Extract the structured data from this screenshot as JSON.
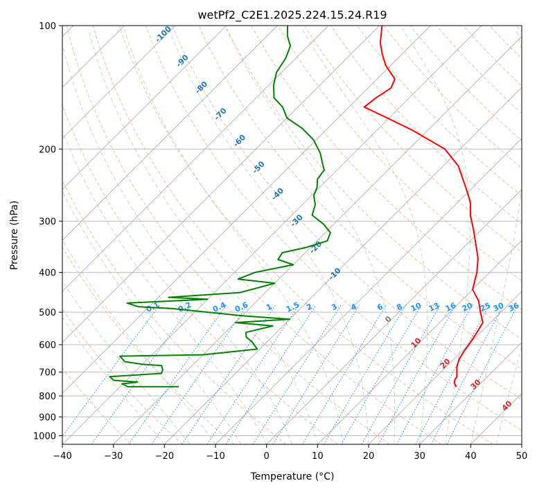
{
  "chart_data": {
    "type": "line",
    "subtype": "skew-T log-P diagram",
    "title": "wetPf2_C2E1.2025.224.15.24.R19",
    "xlabel": "Temperature (°C)",
    "ylabel": "Pressure (hPa)",
    "xlim": [
      -40,
      50
    ],
    "ylim": [
      1050,
      100
    ],
    "y_scale": "log",
    "x_ticks": [
      -40,
      -30,
      -20,
      -10,
      0,
      10,
      20,
      30,
      40,
      50
    ],
    "x_tick_labels": [
      "−40",
      "−30",
      "−20",
      "−10",
      "0",
      "10",
      "20",
      "30",
      "40",
      "50"
    ],
    "y_ticks": [
      100,
      200,
      300,
      400,
      500,
      600,
      700,
      800,
      900,
      1000
    ],
    "y_tick_labels": [
      "100",
      "200",
      "300",
      "400",
      "500",
      "600",
      "700",
      "800",
      "900",
      "1000"
    ],
    "grid": true,
    "series": [
      {
        "role": "temperature",
        "color": "#ff0000",
        "points": [
          [
            25.9,
            760
          ],
          [
            24.8,
            745
          ],
          [
            24.2,
            730
          ],
          [
            24.1,
            720
          ],
          [
            23.4,
            705
          ],
          [
            22.1,
            680
          ],
          [
            21.0,
            650
          ],
          [
            20.4,
            620
          ],
          [
            20.1,
            600
          ],
          [
            19.5,
            570
          ],
          [
            18.5,
            530
          ],
          [
            16.0,
            500
          ],
          [
            13.5,
            470
          ],
          [
            10.0,
            440
          ],
          [
            7.5,
            400
          ],
          [
            5.0,
            370
          ],
          [
            2.2,
            345
          ],
          [
            -1.5,
            315
          ],
          [
            -5.0,
            290
          ],
          [
            -7.5,
            270
          ],
          [
            -11.0,
            250
          ],
          [
            -17.0,
            220
          ],
          [
            -23.0,
            200
          ],
          [
            -33.0,
            180
          ],
          [
            -41.0,
            167
          ],
          [
            -47.0,
            158
          ],
          [
            -46.5,
            150
          ],
          [
            -45.5,
            142
          ],
          [
            -46.5,
            135
          ],
          [
            -51.0,
            125
          ],
          [
            -54.0,
            117
          ],
          [
            -56.5,
            110
          ],
          [
            -59.5,
            100
          ]
        ]
      },
      {
        "role": "dewpoint",
        "color": "#008000",
        "points": [
          [
            -28.5,
            760
          ],
          [
            -38.5,
            760
          ],
          [
            -40.0,
            748
          ],
          [
            -40.2,
            748
          ],
          [
            -37.5,
            740
          ],
          [
            -42.5,
            733
          ],
          [
            -44.0,
            718
          ],
          [
            -34.5,
            705
          ],
          [
            -35.0,
            690
          ],
          [
            -36.0,
            675
          ],
          [
            -40.0,
            670
          ],
          [
            -44.0,
            660
          ],
          [
            -46.0,
            640
          ],
          [
            -30.0,
            635
          ],
          [
            -20.5,
            615
          ],
          [
            -23.0,
            590
          ],
          [
            -25.0,
            575
          ],
          [
            -26.0,
            560
          ],
          [
            -22.0,
            540
          ],
          [
            -30.0,
            530
          ],
          [
            -20.0,
            520
          ],
          [
            -30.0,
            510
          ],
          [
            -45.0,
            490
          ],
          [
            -52.0,
            485
          ],
          [
            -55.0,
            475
          ],
          [
            -40.0,
            465
          ],
          [
            -48.0,
            460
          ],
          [
            -35.0,
            448
          ],
          [
            -30.0,
            425
          ],
          [
            -38.0,
            415
          ],
          [
            -36.0,
            400
          ],
          [
            -30.0,
            383
          ],
          [
            -34.0,
            372
          ],
          [
            -34.5,
            358
          ],
          [
            -31.0,
            348
          ],
          [
            -28.0,
            335
          ],
          [
            -29.0,
            320
          ],
          [
            -32.0,
            305
          ],
          [
            -36.0,
            290
          ],
          [
            -37.5,
            273
          ],
          [
            -39.5,
            260
          ],
          [
            -40.5,
            248
          ],
          [
            -42.0,
            237
          ],
          [
            -42.5,
            225
          ],
          [
            -44.5,
            215
          ],
          [
            -46.5,
            205
          ],
          [
            -50.5,
            190
          ],
          [
            -55.0,
            178
          ],
          [
            -60.0,
            168
          ],
          [
            -63.0,
            158
          ],
          [
            -66.5,
            150
          ],
          [
            -69.0,
            140
          ],
          [
            -71.0,
            130
          ],
          [
            -72.0,
            120
          ],
          [
            -73.5,
            112
          ],
          [
            -76.0,
            106
          ],
          [
            -78.0,
            100
          ]
        ]
      }
    ],
    "dry_adiabat_labels": [
      "-100",
      "-90",
      "-80",
      "-70",
      "-60",
      "-50",
      "-40",
      "-30",
      "-20",
      "-10"
    ],
    "mixing_ratio_labels": [
      "0.1",
      "0.2",
      "0.4",
      "0.6",
      "1",
      "1.5",
      "2",
      "3",
      "4",
      "6",
      "8",
      "10",
      "13",
      "16",
      "20",
      "25",
      "30",
      "36"
    ],
    "moist_adiabat_labels": [
      "0",
      "10",
      "20",
      "30",
      "40"
    ],
    "line_colors": {
      "isotherm": "#b0b0b0",
      "isobar": "#b0b0b0",
      "dry_adiabat": "#f4a582",
      "moist_adiabat": "#66bd63",
      "mixing_ratio": "#1e90ff",
      "dry_label": "#1f77b4",
      "moist_label": "#d62728",
      "zero_label": "#808080"
    }
  }
}
